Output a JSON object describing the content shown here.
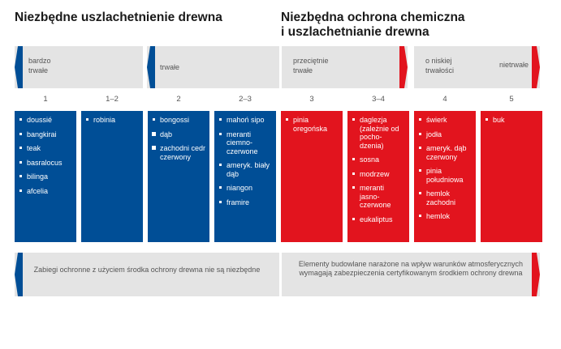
{
  "headings": {
    "left": "Niezbędne uszlachetnienie drewna",
    "right_line1": "Niezbędna ochrona chemiczna",
    "right_line2": "i uszlachetnianie drewna"
  },
  "bands": {
    "very_durable_1": "bardzo",
    "very_durable_2": "trwałe",
    "durable": "trwałe",
    "moderate_1": "przeciętnie",
    "moderate_2": "trwałe",
    "low_1": "o niskiej",
    "low_2": "trwałości",
    "nondurable": "nietrwałe"
  },
  "classes": [
    "1",
    "1–2",
    "2",
    "2–3",
    "3",
    "3–4",
    "4",
    "5"
  ],
  "columns": [
    {
      "items": [
        "doussié",
        "bangkirai",
        "teak",
        "basralocus",
        "bilinga",
        "afcelia"
      ]
    },
    {
      "items": [
        "robinia"
      ]
    },
    {
      "items": [
        "bongossi",
        "dąb",
        "zachodni cedr czerwony"
      ]
    },
    {
      "items": [
        "mahoń sipo",
        "meranti ciemno-czerwone",
        "ameryk. biały dąb",
        "niangon",
        "framire"
      ]
    },
    {
      "items": [
        "pinia oregońska"
      ]
    },
    {
      "items": [
        "daglezja (zależnie od pocho-dzenia)",
        "sosna",
        "modrzew",
        "meranti jasno-czerwone",
        "eukaliptus"
      ]
    },
    {
      "items": [
        "świerk",
        "jodła",
        "ameryk. dąb czerwony",
        "pinia południowa",
        "hemlok zachodni",
        "hemlok"
      ]
    },
    {
      "items": [
        "buk"
      ]
    }
  ],
  "bottom": {
    "left": "Zabiegi ochronne z użyciem środka ochrony drewna nie są niezbędne",
    "right": "Elementy budowlane narażone na wpływ warunków atmosferycznych wymagają zabezpieczenia certyfikowanym środkiem ochrony drewna"
  },
  "colors": {
    "blue": "#004e96",
    "red": "#e2141e",
    "band": "#e4e4e4"
  }
}
